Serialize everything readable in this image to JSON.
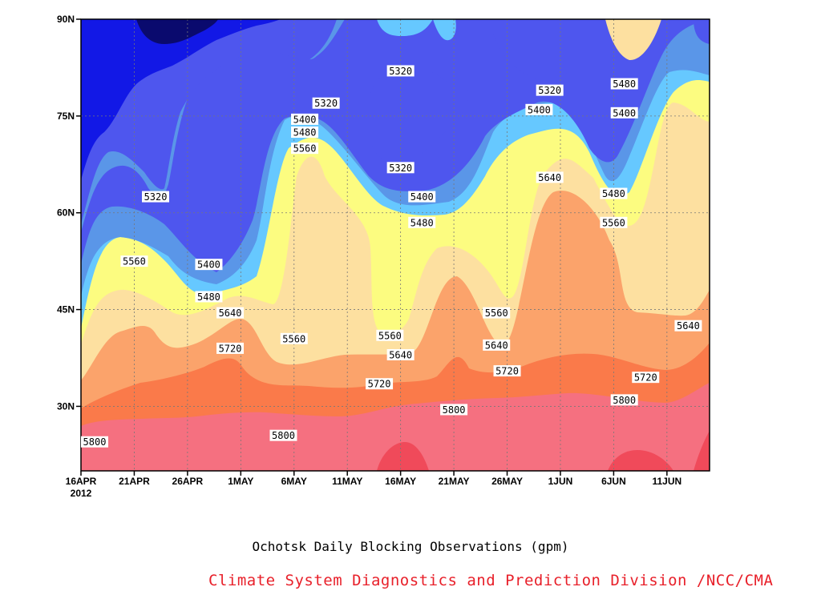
{
  "title": "Ochotsk Daily Blocking Observations (gpm)",
  "credit": "Climate System Diagnostics and Prediction Division /NCC/CMA",
  "chart_data": {
    "type": "contour",
    "title": "Ochotsk Daily Blocking Observations (gpm)",
    "xlabel": "",
    "ylabel": "",
    "x_ticks": [
      "16APR",
      "21APR",
      "26APR",
      "1MAY",
      "6MAY",
      "11MAY",
      "16MAY",
      "21MAY",
      "26MAY",
      "1JUN",
      "6JUN",
      "11JUN"
    ],
    "x_year_label": "2012",
    "x_range": [
      "2012-04-16",
      "2012-06-14"
    ],
    "y_ticks": [
      "30N",
      "45N",
      "60N",
      "75N",
      "90N"
    ],
    "y_range": [
      20,
      90
    ],
    "grid": true,
    "contour_levels": [
      5240,
      5320,
      5400,
      5480,
      5560,
      5640,
      5720,
      5800,
      5880
    ],
    "fill_colors": {
      "below_5240": "#0a0a6e",
      "5240_5320": "#1218e6",
      "5320_5400": "#4e56ee",
      "5400_5480": "#5a96e8",
      "5480_5560": "#66c8ff",
      "5560_5640": "#fcfc80",
      "5640_5720": "#fde0a0",
      "5720_5800": "#fba36b",
      "5800_5880": "#fa7a4a",
      "above_5880": "#f57080"
    },
    "contour_labels": [
      {
        "value": "5320",
        "date": "2012-04-23",
        "lat": 62.5
      },
      {
        "value": "5320",
        "date": "2012-05-09",
        "lat": 77
      },
      {
        "value": "5320",
        "date": "2012-05-16",
        "lat": 82
      },
      {
        "value": "5320",
        "date": "2012-05-16",
        "lat": 67
      },
      {
        "value": "5320",
        "date": "2012-05-30",
        "lat": 79
      },
      {
        "value": "5400",
        "date": "2012-04-28",
        "lat": 52
      },
      {
        "value": "5400",
        "date": "2012-05-07",
        "lat": 74.5
      },
      {
        "value": "5400",
        "date": "2012-05-18",
        "lat": 62.5
      },
      {
        "value": "5400",
        "date": "2012-05-29",
        "lat": 76
      },
      {
        "value": "5400",
        "date": "2012-06-06",
        "lat": 75.5
      },
      {
        "value": "5480",
        "date": "2012-06-06",
        "lat": 80
      },
      {
        "value": "5480",
        "date": "2012-05-07",
        "lat": 72.5
      },
      {
        "value": "5480",
        "date": "2012-04-28",
        "lat": 47
      },
      {
        "value": "5480",
        "date": "2012-05-18",
        "lat": 58.5
      },
      {
        "value": "5480",
        "date": "2012-06-05",
        "lat": 63
      },
      {
        "value": "5560",
        "date": "2012-04-21",
        "lat": 52.5
      },
      {
        "value": "5560",
        "date": "2012-05-07",
        "lat": 70
      },
      {
        "value": "5560",
        "date": "2012-05-06",
        "lat": 40.5
      },
      {
        "value": "5560",
        "date": "2012-05-15",
        "lat": 41
      },
      {
        "value": "5560",
        "date": "2012-05-25",
        "lat": 44.5
      },
      {
        "value": "5560",
        "date": "2012-06-05",
        "lat": 58.5
      },
      {
        "value": "5640",
        "date": "2012-04-30",
        "lat": 44.5
      },
      {
        "value": "5640",
        "date": "2012-05-16",
        "lat": 38
      },
      {
        "value": "5640",
        "date": "2012-05-25",
        "lat": 39.5
      },
      {
        "value": "5640",
        "date": "2012-05-30",
        "lat": 65.5
      },
      {
        "value": "5640",
        "date": "2012-06-12",
        "lat": 42.5
      },
      {
        "value": "5720",
        "date": "2012-04-30",
        "lat": 39
      },
      {
        "value": "5720",
        "date": "2012-05-14",
        "lat": 33.5
      },
      {
        "value": "5720",
        "date": "2012-05-26",
        "lat": 35.5
      },
      {
        "value": "5720",
        "date": "2012-06-08",
        "lat": 34.5
      },
      {
        "value": "5800",
        "date": "2012-04-16",
        "lat": 24.5
      },
      {
        "value": "5800",
        "date": "2012-05-05",
        "lat": 25.5
      },
      {
        "value": "5800",
        "date": "2012-05-21",
        "lat": 29.5
      },
      {
        "value": "5800",
        "date": "2012-06-06",
        "lat": 31
      }
    ]
  }
}
